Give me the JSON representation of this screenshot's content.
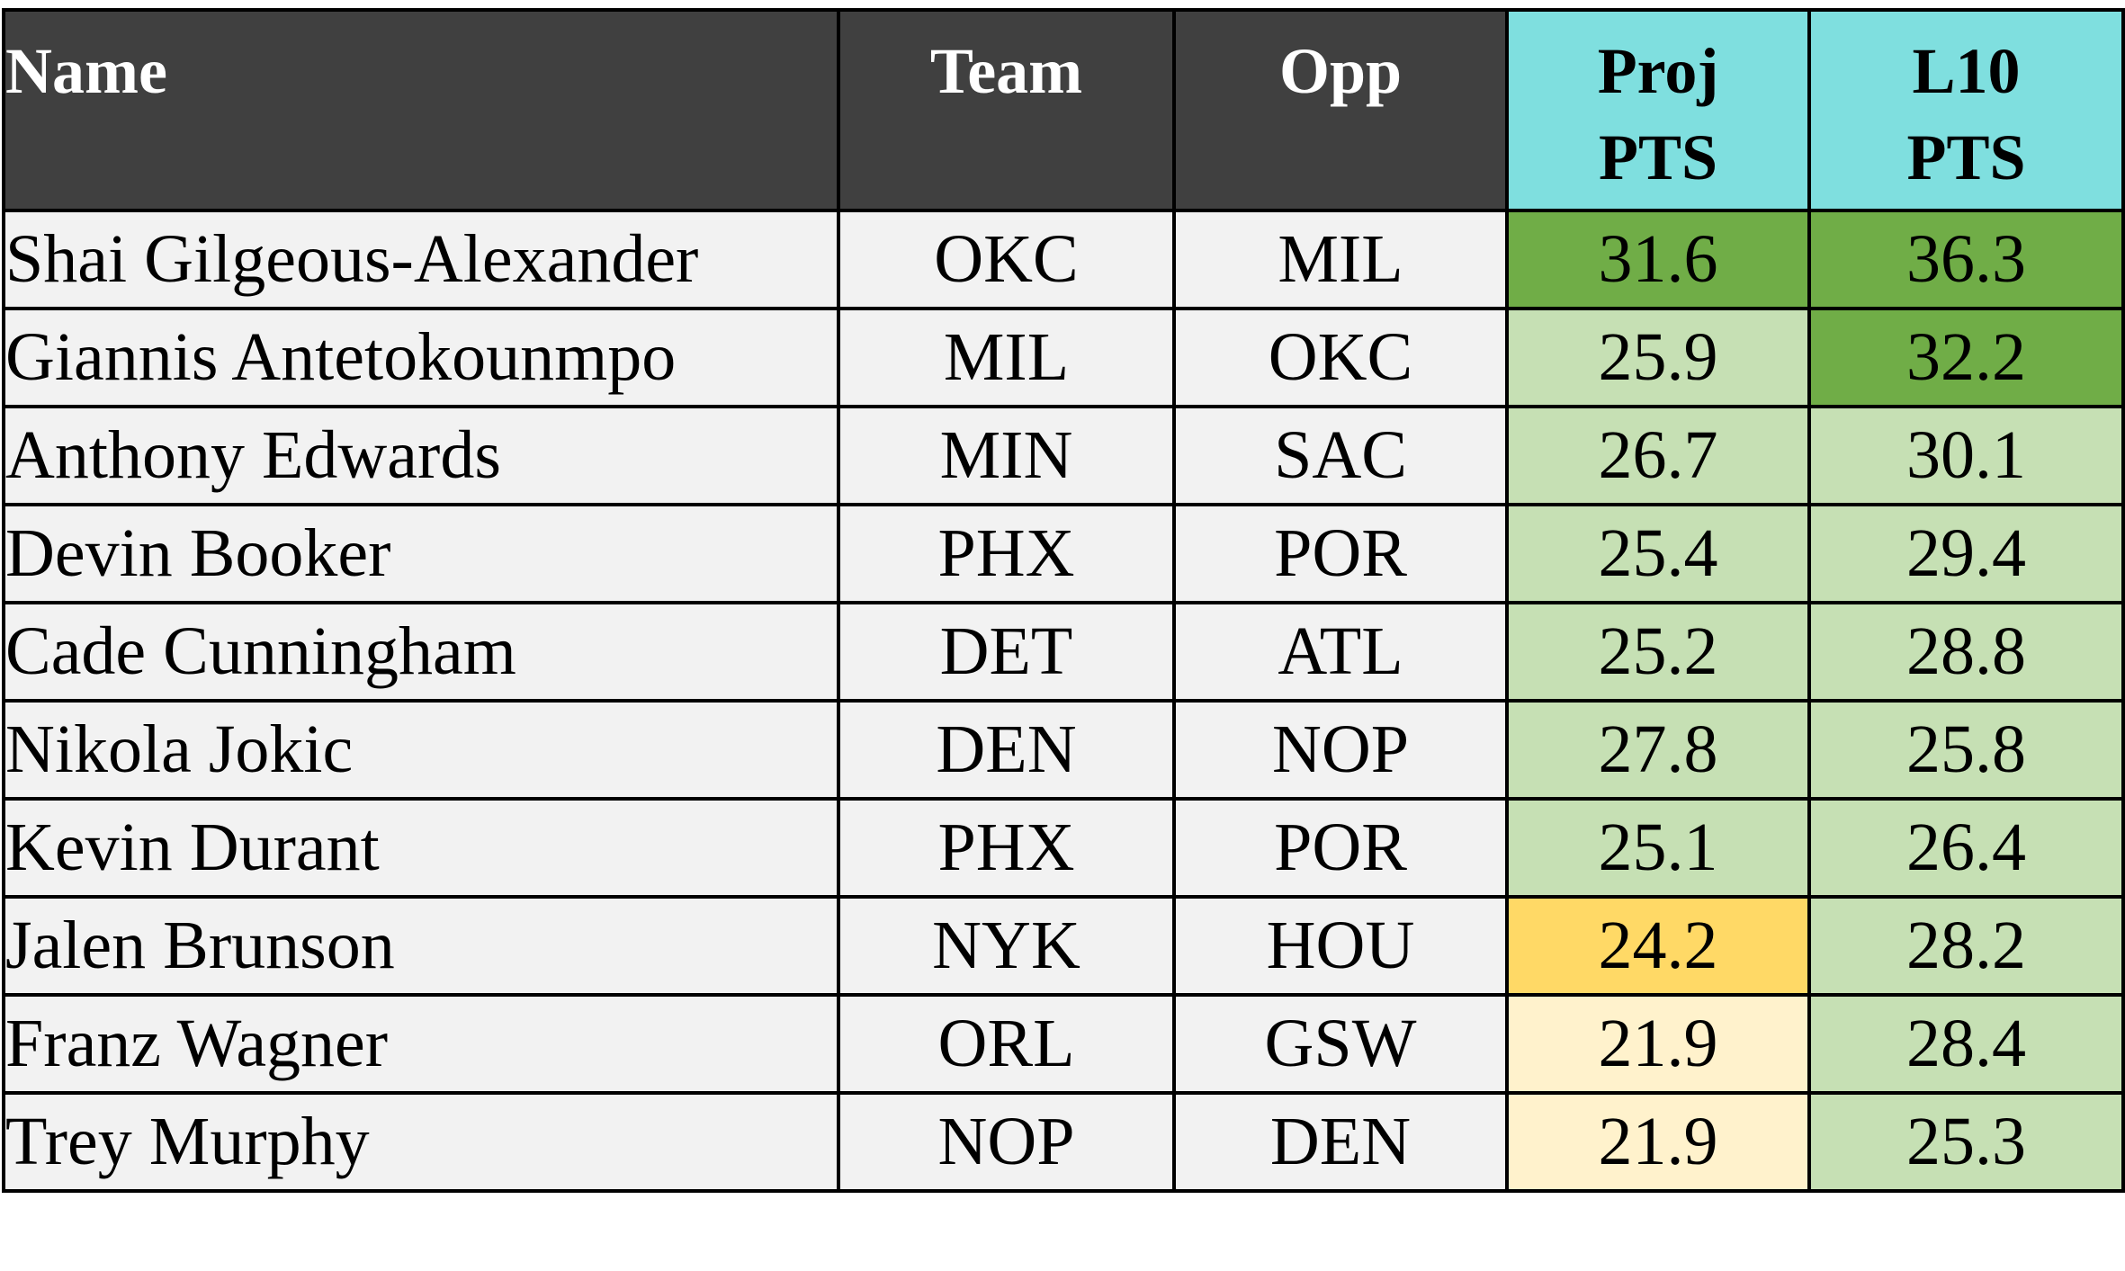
{
  "headers": {
    "name": "Name",
    "team": "Team",
    "opp": "Opp",
    "proj_line1": "Proj",
    "proj_line2": "PTS",
    "l10_line1": "L10",
    "l10_line2": "PTS"
  },
  "colors": {
    "header_dark": "#404040",
    "header_cyan": "#7fdfdf",
    "cell_default": "#f2f2f2",
    "dark_green": "#70ad47",
    "light_green": "#c6e0b4",
    "gold": "#ffd966",
    "light_yellow": "#fff2cc"
  },
  "rows": [
    {
      "name": "Shai Gilgeous-Alexander",
      "team": "OKC",
      "opp": "MIL",
      "proj": "31.6",
      "l10": "36.3",
      "proj_color": "#70ad47",
      "l10_color": "#70ad47"
    },
    {
      "name": "Giannis Antetokounmpo",
      "team": "MIL",
      "opp": "OKC",
      "proj": "25.9",
      "l10": "32.2",
      "proj_color": "#c6e0b4",
      "l10_color": "#70ad47"
    },
    {
      "name": "Anthony Edwards",
      "team": "MIN",
      "opp": "SAC",
      "proj": "26.7",
      "l10": "30.1",
      "proj_color": "#c6e0b4",
      "l10_color": "#c6e0b4"
    },
    {
      "name": "Devin Booker",
      "team": "PHX",
      "opp": "POR",
      "proj": "25.4",
      "l10": "29.4",
      "proj_color": "#c6e0b4",
      "l10_color": "#c6e0b4"
    },
    {
      "name": "Cade Cunningham",
      "team": "DET",
      "opp": "ATL",
      "proj": "25.2",
      "l10": "28.8",
      "proj_color": "#c6e0b4",
      "l10_color": "#c6e0b4"
    },
    {
      "name": "Nikola Jokic",
      "team": "DEN",
      "opp": "NOP",
      "proj": "27.8",
      "l10": "25.8",
      "proj_color": "#c6e0b4",
      "l10_color": "#c6e0b4"
    },
    {
      "name": "Kevin Durant",
      "team": "PHX",
      "opp": "POR",
      "proj": "25.1",
      "l10": "26.4",
      "proj_color": "#c6e0b4",
      "l10_color": "#c6e0b4"
    },
    {
      "name": "Jalen Brunson",
      "team": "NYK",
      "opp": "HOU",
      "proj": "24.2",
      "l10": "28.2",
      "proj_color": "#ffd966",
      "l10_color": "#c6e0b4"
    },
    {
      "name": "Franz Wagner",
      "team": "ORL",
      "opp": "GSW",
      "proj": "21.9",
      "l10": "28.4",
      "proj_color": "#fff2cc",
      "l10_color": "#c6e0b4"
    },
    {
      "name": "Trey Murphy",
      "team": "NOP",
      "opp": "DEN",
      "proj": "21.9",
      "l10": "25.3",
      "proj_color": "#fff2cc",
      "l10_color": "#c6e0b4"
    }
  ]
}
